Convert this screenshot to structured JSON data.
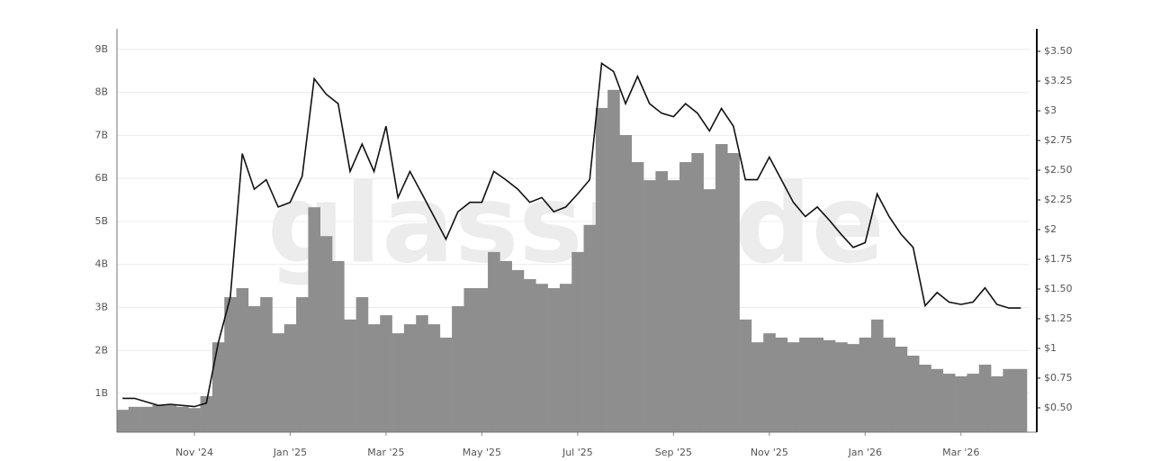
{
  "chart_data": {
    "type": "bar-line",
    "watermark": "glassnode",
    "categories": [
      null,
      null,
      null,
      null,
      null,
      null,
      "Nov '24",
      null,
      null,
      null,
      null,
      null,
      null,
      null,
      "Jan '25",
      null,
      null,
      null,
      null,
      null,
      null,
      null,
      "Mar '25",
      null,
      null,
      null,
      null,
      null,
      null,
      null,
      "May '25",
      null,
      null,
      null,
      null,
      null,
      null,
      null,
      "Jul '25",
      null,
      null,
      null,
      null,
      null,
      null,
      null,
      "Sep '25",
      null,
      null,
      null,
      null,
      null,
      null,
      null,
      "Nov '25",
      null,
      null,
      null,
      null,
      null,
      null,
      null,
      "Jan '26",
      null,
      null,
      null,
      null,
      null,
      null,
      null,
      "Mar '26",
      null,
      null,
      null,
      null,
      null
    ],
    "series": [
      {
        "type": "bar",
        "color": "#8e8e8e",
        "values": [
          0.62,
          0.69,
          0.69,
          0.73,
          0.73,
          0.69,
          0.66,
          0.94,
          2.19,
          3.24,
          3.45,
          3.03,
          3.24,
          2.4,
          2.61,
          3.24,
          5.33,
          4.66,
          4.08,
          2.72,
          3.24,
          2.61,
          2.82,
          2.4,
          2.61,
          2.82,
          2.61,
          2.3,
          3.03,
          3.45,
          3.45,
          4.29,
          4.08,
          3.87,
          3.66,
          3.55,
          3.45,
          3.55,
          4.29,
          4.92,
          7.64,
          8.06,
          7.01,
          6.38,
          5.96,
          6.17,
          5.96,
          6.38,
          6.59,
          5.75,
          6.8,
          6.59,
          2.72,
          2.19,
          2.4,
          2.3,
          2.19,
          2.3,
          2.3,
          2.24,
          2.19,
          2.15,
          2.3,
          2.72,
          2.3,
          2.09,
          1.88,
          1.67,
          1.57,
          1.46,
          1.4,
          1.46,
          1.67,
          1.4,
          1.57,
          1.57
        ]
      },
      {
        "type": "line",
        "axis": "y2",
        "color": "#111111",
        "values": [
          0.58,
          0.58,
          0.55,
          0.52,
          0.53,
          0.52,
          0.51,
          0.54,
          1.05,
          1.43,
          2.64,
          2.34,
          2.42,
          2.19,
          2.23,
          2.45,
          3.27,
          3.14,
          3.06,
          2.49,
          2.72,
          2.49,
          2.87,
          2.27,
          2.49,
          2.3,
          2.11,
          1.92,
          2.15,
          2.23,
          2.23,
          2.49,
          2.42,
          2.34,
          2.23,
          2.27,
          2.15,
          2.19,
          2.3,
          2.42,
          3.4,
          3.33,
          3.06,
          3.29,
          3.06,
          2.98,
          2.95,
          3.06,
          2.98,
          2.83,
          3.02,
          2.87,
          2.42,
          2.42,
          2.61,
          2.42,
          2.23,
          2.11,
          2.19,
          2.08,
          1.96,
          1.85,
          1.89,
          2.3,
          2.11,
          1.96,
          1.85,
          1.36,
          1.47,
          1.39,
          1.37,
          1.39,
          1.51,
          1.37,
          1.34,
          1.34
        ]
      }
    ],
    "ylim": [
      0.1,
      9.48
    ],
    "yticks": [
      {
        "value": 1,
        "label": "1B"
      },
      {
        "value": 2,
        "label": "2B"
      },
      {
        "value": 3,
        "label": "3B"
      },
      {
        "value": 4,
        "label": "4B"
      },
      {
        "value": 5,
        "label": "5B"
      },
      {
        "value": 6,
        "label": "6B"
      },
      {
        "value": 7,
        "label": "7B"
      },
      {
        "value": 8,
        "label": "8B"
      },
      {
        "value": 9,
        "label": "9B"
      }
    ],
    "y2lim": [
      0.295,
      3.69
    ],
    "y2ticks": [
      {
        "value": 0.5,
        "label": "$0.50"
      },
      {
        "value": 0.75,
        "label": "$0.75"
      },
      {
        "value": 1,
        "label": "$1"
      },
      {
        "value": 1.25,
        "label": "$1.25"
      },
      {
        "value": 1.5,
        "label": "$1.50"
      },
      {
        "value": 1.75,
        "label": "$1.75"
      },
      {
        "value": 2,
        "label": "$2"
      },
      {
        "value": 2.25,
        "label": "$2.25"
      },
      {
        "value": 2.5,
        "label": "$2.50"
      },
      {
        "value": 2.75,
        "label": "$2.75"
      },
      {
        "value": 3,
        "label": "$3"
      },
      {
        "value": 3.25,
        "label": "$3.25"
      },
      {
        "value": 3.5,
        "label": "$3.50"
      }
    ],
    "grid": true
  }
}
